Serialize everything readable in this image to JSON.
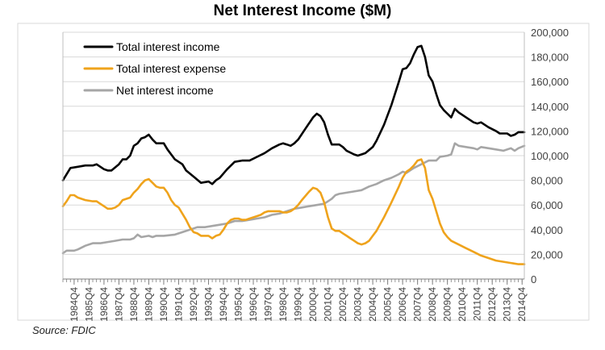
{
  "chart_data": {
    "type": "line",
    "title": "Net Interest Income ($M)",
    "source": "Source: FDIC",
    "ylim": [
      0,
      200000
    ],
    "y_ticks": [
      "0",
      "20,000",
      "40,000",
      "60,000",
      "80,000",
      "100,000",
      "120,000",
      "140,000",
      "160,000",
      "180,000",
      "200,000"
    ],
    "y_tick_values": [
      0,
      20000,
      40000,
      60000,
      80000,
      100000,
      120000,
      140000,
      160000,
      180000,
      200000
    ],
    "y_axis_side": "right",
    "x_ticks": [
      "1984Q4",
      "1985Q4",
      "1986Q4",
      "1987Q4",
      "1988Q4",
      "1989Q4",
      "1990Q4",
      "1991Q4",
      "1992Q4",
      "1993Q4",
      "1994Q4",
      "1995Q4",
      "1996Q4",
      "1997Q4",
      "1998Q4",
      "1999Q4",
      "2000Q4",
      "2001Q4",
      "2002Q4",
      "2003Q4",
      "2004Q4",
      "2005Q4",
      "2006Q4",
      "2007Q4",
      "2008Q4",
      "2009Q4",
      "2010Q4",
      "2011Q4",
      "2012Q4",
      "2013Q4",
      "2014Q4"
    ],
    "x_tick_values": [
      1984.75,
      1985.75,
      1986.75,
      1987.75,
      1988.75,
      1989.75,
      1990.75,
      1991.75,
      1992.75,
      1993.75,
      1994.75,
      1995.75,
      1996.75,
      1997.75,
      1998.75,
      1999.75,
      2000.75,
      2001.75,
      2002.75,
      2003.75,
      2004.75,
      2005.75,
      2006.75,
      2007.75,
      2008.75,
      2009.75,
      2010.75,
      2011.75,
      2012.75,
      2013.75,
      2014.75
    ],
    "xlim": [
      1984.0,
      2014.9
    ],
    "grid": "horizontal",
    "legend_position": "top-left",
    "series": [
      {
        "name": "Total interest income",
        "color": "#000000",
        "points": [
          [
            1984.0,
            80000
          ],
          [
            1984.5,
            90000
          ],
          [
            1985.0,
            91000
          ],
          [
            1985.5,
            92000
          ],
          [
            1986.0,
            92000
          ],
          [
            1986.25,
            93000
          ],
          [
            1986.75,
            89000
          ],
          [
            1987.0,
            88000
          ],
          [
            1987.25,
            88000
          ],
          [
            1987.75,
            93000
          ],
          [
            1988.0,
            97000
          ],
          [
            1988.25,
            97000
          ],
          [
            1988.5,
            100000
          ],
          [
            1988.75,
            108000
          ],
          [
            1989.0,
            110000
          ],
          [
            1989.25,
            114000
          ],
          [
            1989.5,
            115000
          ],
          [
            1989.75,
            117000
          ],
          [
            1990.0,
            113000
          ],
          [
            1990.25,
            110000
          ],
          [
            1990.75,
            110000
          ],
          [
            1991.0,
            105000
          ],
          [
            1991.5,
            97000
          ],
          [
            1992.0,
            93000
          ],
          [
            1992.25,
            88000
          ],
          [
            1992.75,
            83000
          ],
          [
            1993.25,
            78000
          ],
          [
            1993.75,
            79000
          ],
          [
            1994.0,
            77000
          ],
          [
            1994.25,
            80000
          ],
          [
            1994.5,
            82000
          ],
          [
            1995.0,
            89000
          ],
          [
            1995.5,
            95000
          ],
          [
            1996.0,
            96000
          ],
          [
            1996.5,
            96000
          ],
          [
            1997.0,
            99000
          ],
          [
            1997.5,
            102000
          ],
          [
            1998.0,
            106000
          ],
          [
            1998.5,
            109000
          ],
          [
            1998.75,
            110000
          ],
          [
            1999.0,
            109000
          ],
          [
            1999.25,
            108000
          ],
          [
            1999.5,
            110000
          ],
          [
            1999.75,
            113000
          ],
          [
            2000.25,
            122000
          ],
          [
            2000.75,
            131000
          ],
          [
            2001.0,
            134000
          ],
          [
            2001.25,
            132000
          ],
          [
            2001.5,
            127000
          ],
          [
            2001.75,
            117000
          ],
          [
            2002.0,
            109000
          ],
          [
            2002.5,
            109000
          ],
          [
            2002.75,
            107000
          ],
          [
            2003.0,
            104000
          ],
          [
            2003.5,
            101000
          ],
          [
            2003.75,
            100000
          ],
          [
            2004.25,
            102000
          ],
          [
            2004.75,
            107000
          ],
          [
            2005.0,
            112000
          ],
          [
            2005.5,
            125000
          ],
          [
            2006.0,
            141000
          ],
          [
            2006.5,
            160000
          ],
          [
            2006.75,
            170000
          ],
          [
            2007.0,
            171000
          ],
          [
            2007.25,
            175000
          ],
          [
            2007.5,
            182000
          ],
          [
            2007.75,
            188000
          ],
          [
            2008.0,
            189000
          ],
          [
            2008.25,
            180000
          ],
          [
            2008.5,
            165000
          ],
          [
            2008.75,
            160000
          ],
          [
            2009.0,
            150000
          ],
          [
            2009.25,
            141000
          ],
          [
            2009.5,
            137000
          ],
          [
            2009.75,
            134000
          ],
          [
            2010.0,
            131000
          ],
          [
            2010.25,
            138000
          ],
          [
            2010.5,
            135000
          ],
          [
            2011.0,
            131000
          ],
          [
            2011.5,
            127000
          ],
          [
            2011.75,
            126000
          ],
          [
            2012.0,
            127000
          ],
          [
            2012.5,
            123000
          ],
          [
            2013.0,
            120000
          ],
          [
            2013.25,
            118000
          ],
          [
            2013.75,
            118000
          ],
          [
            2014.0,
            116000
          ],
          [
            2014.25,
            117000
          ],
          [
            2014.5,
            119000
          ],
          [
            2014.9,
            119000
          ]
        ]
      },
      {
        "name": "Total interest expense",
        "color": "#EFA31C",
        "points": [
          [
            1984.0,
            59000
          ],
          [
            1984.25,
            63000
          ],
          [
            1984.5,
            68000
          ],
          [
            1984.75,
            68000
          ],
          [
            1985.0,
            66000
          ],
          [
            1985.5,
            64000
          ],
          [
            1986.0,
            63000
          ],
          [
            1986.25,
            63000
          ],
          [
            1986.5,
            61000
          ],
          [
            1986.75,
            59000
          ],
          [
            1987.0,
            57000
          ],
          [
            1987.25,
            57000
          ],
          [
            1987.5,
            58000
          ],
          [
            1987.75,
            60000
          ],
          [
            1988.0,
            64000
          ],
          [
            1988.5,
            66000
          ],
          [
            1988.75,
            70000
          ],
          [
            1989.0,
            73000
          ],
          [
            1989.25,
            77000
          ],
          [
            1989.5,
            80000
          ],
          [
            1989.75,
            81000
          ],
          [
            1990.0,
            78000
          ],
          [
            1990.25,
            75000
          ],
          [
            1990.5,
            74000
          ],
          [
            1990.75,
            74000
          ],
          [
            1991.0,
            70000
          ],
          [
            1991.25,
            64000
          ],
          [
            1991.5,
            60000
          ],
          [
            1991.75,
            58000
          ],
          [
            1992.0,
            53000
          ],
          [
            1992.25,
            48000
          ],
          [
            1992.5,
            42000
          ],
          [
            1992.75,
            38000
          ],
          [
            1993.0,
            37000
          ],
          [
            1993.25,
            35000
          ],
          [
            1993.5,
            35000
          ],
          [
            1993.75,
            35000
          ],
          [
            1994.0,
            33000
          ],
          [
            1994.25,
            35000
          ],
          [
            1994.5,
            36000
          ],
          [
            1994.75,
            40000
          ],
          [
            1995.0,
            45000
          ],
          [
            1995.25,
            48000
          ],
          [
            1995.5,
            49000
          ],
          [
            1995.75,
            49000
          ],
          [
            1996.0,
            48000
          ],
          [
            1996.25,
            48000
          ],
          [
            1996.5,
            49000
          ],
          [
            1996.75,
            50000
          ],
          [
            1997.0,
            51000
          ],
          [
            1997.25,
            52000
          ],
          [
            1997.5,
            54000
          ],
          [
            1997.75,
            55000
          ],
          [
            1998.0,
            55000
          ],
          [
            1998.25,
            55000
          ],
          [
            1998.5,
            55000
          ],
          [
            1998.75,
            54000
          ],
          [
            1999.0,
            54000
          ],
          [
            1999.25,
            55000
          ],
          [
            1999.5,
            57000
          ],
          [
            1999.75,
            60000
          ],
          [
            2000.0,
            64000
          ],
          [
            2000.5,
            71000
          ],
          [
            2000.75,
            74000
          ],
          [
            2001.0,
            73000
          ],
          [
            2001.25,
            70000
          ],
          [
            2001.5,
            62000
          ],
          [
            2001.75,
            50000
          ],
          [
            2002.0,
            41000
          ],
          [
            2002.25,
            39000
          ],
          [
            2002.5,
            39000
          ],
          [
            2002.75,
            37000
          ],
          [
            2003.0,
            35000
          ],
          [
            2003.25,
            33000
          ],
          [
            2003.5,
            31000
          ],
          [
            2003.75,
            29000
          ],
          [
            2004.0,
            28000
          ],
          [
            2004.25,
            29000
          ],
          [
            2004.5,
            31000
          ],
          [
            2004.75,
            35000
          ],
          [
            2005.0,
            39000
          ],
          [
            2005.5,
            50000
          ],
          [
            2006.0,
            62000
          ],
          [
            2006.5,
            75000
          ],
          [
            2006.75,
            82000
          ],
          [
            2007.0,
            87000
          ],
          [
            2007.25,
            89000
          ],
          [
            2007.5,
            92000
          ],
          [
            2007.75,
            96000
          ],
          [
            2008.0,
            97000
          ],
          [
            2008.25,
            90000
          ],
          [
            2008.5,
            72000
          ],
          [
            2008.75,
            65000
          ],
          [
            2009.0,
            55000
          ],
          [
            2009.25,
            45000
          ],
          [
            2009.5,
            38000
          ],
          [
            2009.75,
            34000
          ],
          [
            2010.0,
            31000
          ],
          [
            2010.5,
            28000
          ],
          [
            2011.0,
            25000
          ],
          [
            2011.5,
            22000
          ],
          [
            2012.0,
            19000
          ],
          [
            2012.5,
            17000
          ],
          [
            2013.0,
            15000
          ],
          [
            2013.5,
            14000
          ],
          [
            2014.0,
            13000
          ],
          [
            2014.5,
            12000
          ],
          [
            2014.9,
            12000
          ]
        ]
      },
      {
        "name": "Net interest income",
        "color": "#A6A6A6",
        "points": [
          [
            1984.0,
            21000
          ],
          [
            1984.25,
            23000
          ],
          [
            1984.75,
            23000
          ],
          [
            1985.0,
            24000
          ],
          [
            1985.5,
            27000
          ],
          [
            1986.0,
            29000
          ],
          [
            1986.5,
            29000
          ],
          [
            1987.0,
            30000
          ],
          [
            1987.5,
            31000
          ],
          [
            1988.0,
            32000
          ],
          [
            1988.5,
            32000
          ],
          [
            1988.75,
            33000
          ],
          [
            1989.0,
            36000
          ],
          [
            1989.25,
            34000
          ],
          [
            1989.75,
            35000
          ],
          [
            1990.0,
            34000
          ],
          [
            1990.25,
            35000
          ],
          [
            1990.75,
            35000
          ],
          [
            1991.5,
            36000
          ],
          [
            1992.0,
            38000
          ],
          [
            1992.5,
            40000
          ],
          [
            1993.0,
            42000
          ],
          [
            1993.5,
            42000
          ],
          [
            1994.0,
            43000
          ],
          [
            1994.5,
            44000
          ],
          [
            1995.0,
            45000
          ],
          [
            1995.5,
            47000
          ],
          [
            1996.0,
            47000
          ],
          [
            1996.5,
            48000
          ],
          [
            1997.0,
            49000
          ],
          [
            1997.5,
            50000
          ],
          [
            1998.0,
            52000
          ],
          [
            1998.5,
            53000
          ],
          [
            1999.0,
            55000
          ],
          [
            1999.5,
            57000
          ],
          [
            2000.0,
            58000
          ],
          [
            2000.5,
            59000
          ],
          [
            2001.0,
            60000
          ],
          [
            2001.5,
            61000
          ],
          [
            2002.0,
            65000
          ],
          [
            2002.25,
            68000
          ],
          [
            2002.5,
            69000
          ],
          [
            2003.0,
            70000
          ],
          [
            2003.5,
            71000
          ],
          [
            2004.0,
            72000
          ],
          [
            2004.5,
            75000
          ],
          [
            2005.0,
            77000
          ],
          [
            2005.5,
            80000
          ],
          [
            2006.0,
            82000
          ],
          [
            2006.5,
            85000
          ],
          [
            2006.75,
            87000
          ],
          [
            2007.0,
            86000
          ],
          [
            2007.5,
            90000
          ],
          [
            2008.0,
            93000
          ],
          [
            2008.5,
            96000
          ],
          [
            2009.0,
            96000
          ],
          [
            2009.25,
            99000
          ],
          [
            2009.75,
            100000
          ],
          [
            2010.0,
            101000
          ],
          [
            2010.25,
            110000
          ],
          [
            2010.5,
            108000
          ],
          [
            2011.0,
            107000
          ],
          [
            2011.5,
            106000
          ],
          [
            2011.75,
            105000
          ],
          [
            2012.0,
            107000
          ],
          [
            2012.5,
            106000
          ],
          [
            2013.0,
            105000
          ],
          [
            2013.5,
            104000
          ],
          [
            2014.0,
            106000
          ],
          [
            2014.25,
            104000
          ],
          [
            2014.5,
            106000
          ],
          [
            2014.9,
            108000
          ]
        ]
      }
    ]
  }
}
